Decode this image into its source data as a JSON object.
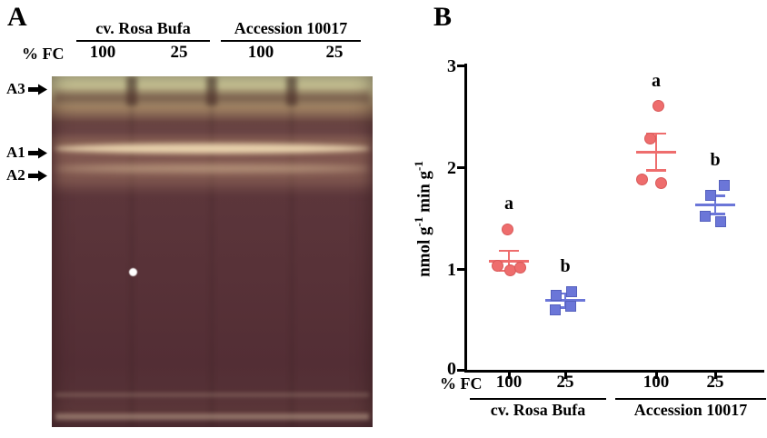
{
  "panelA": {
    "label": "A",
    "fc_label": "% FC",
    "groups": [
      {
        "name": "cv. Rosa Bufa",
        "lanes": [
          "100",
          "25"
        ]
      },
      {
        "name": "Accession 10017",
        "lanes": [
          "100",
          "25"
        ]
      }
    ],
    "band_labels": [
      "A3",
      "A1",
      "A2"
    ]
  },
  "panelB": {
    "label": "B",
    "fc_label": "% FC"
  },
  "chart_data": {
    "type": "scatter",
    "title": "",
    "ylabel": "nmol g-1 min g-1",
    "ylabel_parts": [
      {
        "t": "nmol g"
      },
      {
        "t": "-1",
        "sup": true
      },
      {
        "t": " min g"
      },
      {
        "t": "-1",
        "sup": true
      }
    ],
    "ylim": [
      0,
      3
    ],
    "yticks": [
      3,
      2,
      1,
      0
    ],
    "ytick_labels": [
      "3",
      "2",
      "1",
      "0"
    ],
    "x_axis_label": "% FC",
    "x_group_labels": [
      "cv. Rosa Bufa",
      "Accession 10017"
    ],
    "grid": false,
    "legend": null,
    "groups": [
      {
        "condition": "cv. Rosa Bufa",
        "fc": "100",
        "marker": "circle",
        "color": "#ee6d6d",
        "edge": "#d85a5a",
        "letter": "a",
        "points": [
          1.39,
          1.03,
          0.99,
          1.01
        ],
        "mean": 1.08,
        "sem": 0.1
      },
      {
        "condition": "cv. Rosa Bufa",
        "fc": "25",
        "marker": "square",
        "color": "#6b76d8",
        "edge": "#5560bd",
        "letter": "b",
        "points": [
          0.78,
          0.74,
          0.63,
          0.6
        ],
        "mean": 0.69,
        "sem": 0.07
      },
      {
        "condition": "Accession 10017",
        "fc": "100",
        "marker": "circle",
        "color": "#ee6d6d",
        "edge": "#d85a5a",
        "letter": "a",
        "points": [
          2.6,
          2.28,
          1.88,
          1.84
        ],
        "mean": 2.15,
        "sem": 0.18
      },
      {
        "condition": "Accession 10017",
        "fc": "25",
        "marker": "square",
        "color": "#6b76d8",
        "edge": "#5560bd",
        "letter": "b",
        "points": [
          1.82,
          1.72,
          1.52,
          1.46
        ],
        "mean": 1.63,
        "sem": 0.09
      }
    ]
  }
}
